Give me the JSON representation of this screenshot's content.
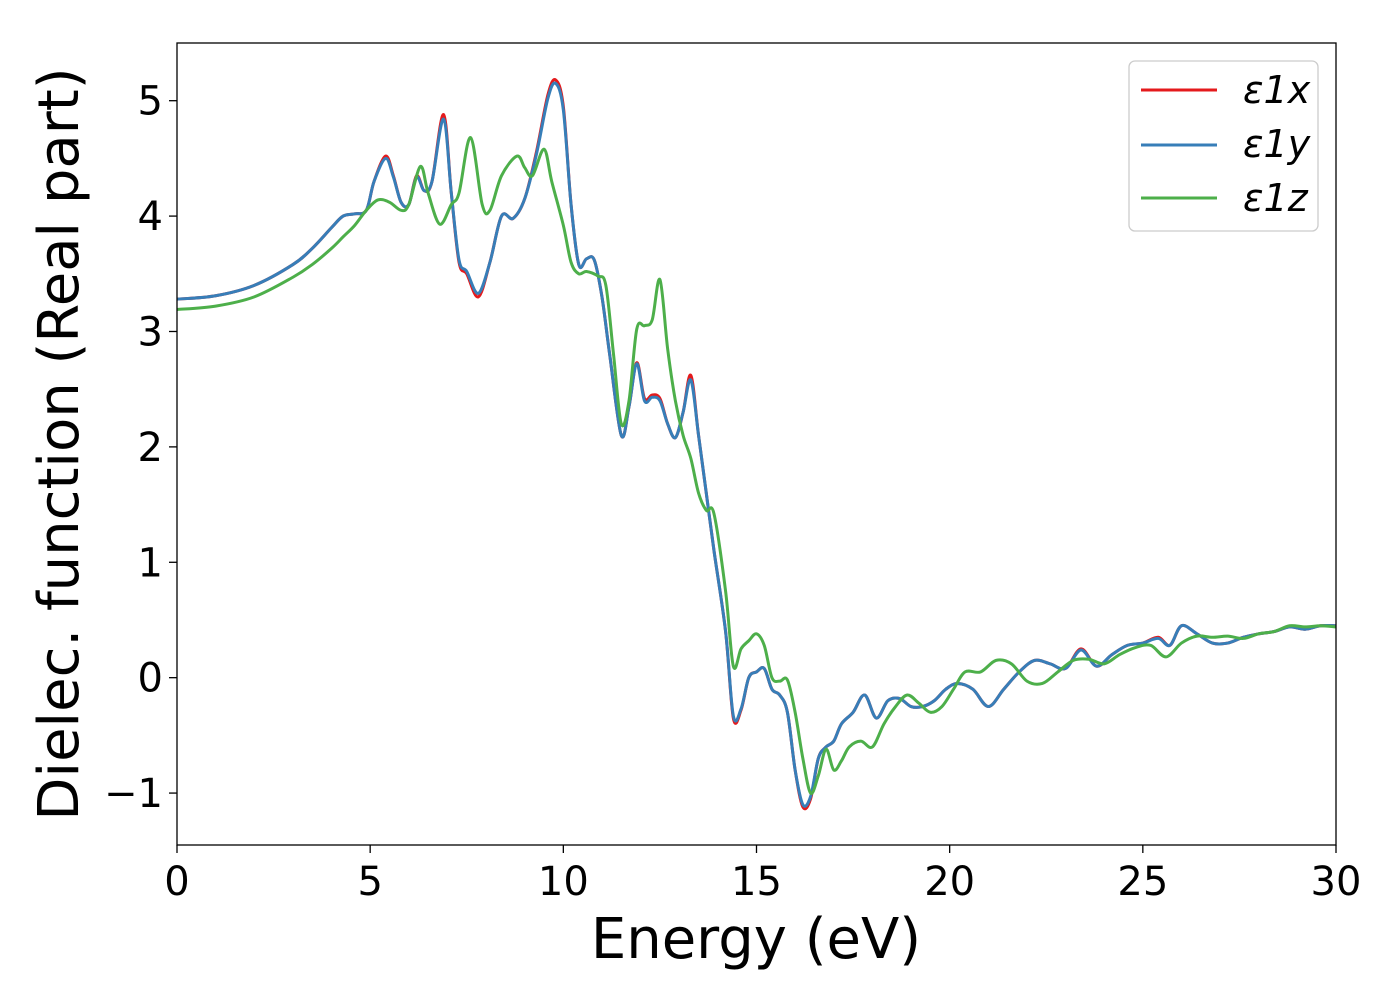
{
  "chart_data": {
    "type": "line",
    "xlabel": "Energy (eV)",
    "ylabel": "Dielec. function (Real part)",
    "xlim": [
      0,
      30
    ],
    "ylim": [
      -1.45,
      5.5
    ],
    "xticks": [
      0,
      5,
      10,
      15,
      20,
      25,
      30
    ],
    "xtick_labels": [
      "0",
      "5",
      "10",
      "15",
      "20",
      "25",
      "30"
    ],
    "yticks": [
      -1,
      0,
      1,
      2,
      3,
      4,
      5
    ],
    "ytick_labels": [
      "−1",
      "0",
      "1",
      "2",
      "3",
      "4",
      "5"
    ],
    "grid": false,
    "legend_position": "top-right",
    "series": [
      {
        "name": "ε1x",
        "color": "#e41a1c",
        "x": [
          0,
          1,
          2,
          3,
          3.5,
          4,
          4.3,
          4.6,
          4.9,
          5.1,
          5.4,
          5.6,
          5.8,
          6.0,
          6.2,
          6.4,
          6.6,
          6.9,
          7.1,
          7.3,
          7.5,
          7.8,
          8.1,
          8.4,
          8.7,
          9.0,
          9.3,
          9.6,
          9.8,
          10.0,
          10.2,
          10.4,
          10.6,
          10.8,
          11.0,
          11.2,
          11.5,
          11.7,
          11.9,
          12.1,
          12.3,
          12.5,
          12.7,
          12.9,
          13.1,
          13.3,
          13.5,
          13.7,
          13.9,
          14.2,
          14.4,
          14.6,
          14.8,
          15.0,
          15.2,
          15.4,
          15.6,
          15.8,
          16.0,
          16.2,
          16.4,
          16.6,
          16.8,
          17.0,
          17.2,
          17.5,
          17.8,
          18.1,
          18.4,
          18.7,
          19.0,
          19.3,
          19.6,
          19.9,
          20.2,
          20.6,
          21.0,
          21.4,
          21.8,
          22.2,
          22.6,
          23.0,
          23.4,
          23.8,
          24.2,
          24.6,
          25.0,
          25.4,
          25.7,
          26.0,
          26.4,
          26.8,
          27.2,
          27.6,
          28.0,
          28.4,
          28.8,
          29.2,
          29.6,
          30.0
        ],
        "y": [
          3.28,
          3.31,
          3.4,
          3.58,
          3.72,
          3.9,
          4.0,
          4.02,
          4.05,
          4.3,
          4.52,
          4.35,
          4.12,
          4.1,
          4.35,
          4.22,
          4.3,
          4.88,
          4.2,
          3.6,
          3.5,
          3.3,
          3.6,
          4.0,
          3.98,
          4.15,
          4.55,
          5.05,
          5.18,
          4.95,
          4.1,
          3.58,
          3.63,
          3.62,
          3.3,
          2.8,
          2.1,
          2.35,
          2.73,
          2.42,
          2.45,
          2.42,
          2.2,
          2.08,
          2.3,
          2.62,
          2.1,
          1.6,
          1.1,
          0.4,
          -0.35,
          -0.28,
          0.0,
          0.05,
          0.08,
          -0.1,
          -0.15,
          -0.3,
          -0.8,
          -1.12,
          -1.05,
          -0.7,
          -0.6,
          -0.55,
          -0.4,
          -0.3,
          -0.15,
          -0.35,
          -0.2,
          -0.18,
          -0.25,
          -0.25,
          -0.2,
          -0.1,
          -0.05,
          -0.1,
          -0.25,
          -0.1,
          0.05,
          0.15,
          0.12,
          0.08,
          0.25,
          0.1,
          0.2,
          0.28,
          0.3,
          0.35,
          0.28,
          0.45,
          0.38,
          0.3,
          0.3,
          0.35,
          0.38,
          0.4,
          0.44,
          0.42,
          0.45,
          0.45
        ]
      },
      {
        "name": "ε1y",
        "color": "#377eb8",
        "x": [
          0,
          1,
          2,
          3,
          3.5,
          4,
          4.3,
          4.6,
          4.9,
          5.1,
          5.4,
          5.6,
          5.8,
          6.0,
          6.2,
          6.4,
          6.6,
          6.9,
          7.1,
          7.3,
          7.5,
          7.8,
          8.1,
          8.4,
          8.7,
          9.0,
          9.3,
          9.6,
          9.8,
          10.0,
          10.2,
          10.4,
          10.6,
          10.8,
          11.0,
          11.2,
          11.5,
          11.7,
          11.9,
          12.1,
          12.3,
          12.5,
          12.7,
          12.9,
          13.1,
          13.3,
          13.5,
          13.7,
          13.9,
          14.2,
          14.4,
          14.6,
          14.8,
          15.0,
          15.2,
          15.4,
          15.6,
          15.8,
          16.0,
          16.2,
          16.4,
          16.6,
          16.8,
          17.0,
          17.2,
          17.5,
          17.8,
          18.1,
          18.4,
          18.7,
          19.0,
          19.3,
          19.6,
          19.9,
          20.2,
          20.6,
          21.0,
          21.4,
          21.8,
          22.2,
          22.6,
          23.0,
          23.4,
          23.8,
          24.2,
          24.6,
          25.0,
          25.4,
          25.7,
          26.0,
          26.4,
          26.8,
          27.2,
          27.6,
          28.0,
          28.4,
          28.8,
          29.2,
          29.6,
          30.0
        ],
        "y": [
          3.28,
          3.31,
          3.4,
          3.58,
          3.72,
          3.9,
          4.0,
          4.02,
          4.05,
          4.3,
          4.5,
          4.34,
          4.12,
          4.1,
          4.34,
          4.22,
          4.3,
          4.84,
          4.2,
          3.62,
          3.52,
          3.33,
          3.6,
          4.0,
          3.98,
          4.15,
          4.53,
          5.02,
          5.15,
          4.92,
          4.1,
          3.58,
          3.63,
          3.62,
          3.3,
          2.8,
          2.1,
          2.35,
          2.72,
          2.4,
          2.43,
          2.4,
          2.2,
          2.08,
          2.3,
          2.58,
          2.1,
          1.6,
          1.1,
          0.4,
          -0.33,
          -0.27,
          0.0,
          0.05,
          0.08,
          -0.1,
          -0.15,
          -0.3,
          -0.8,
          -1.1,
          -1.03,
          -0.7,
          -0.6,
          -0.55,
          -0.4,
          -0.3,
          -0.15,
          -0.35,
          -0.2,
          -0.18,
          -0.25,
          -0.25,
          -0.2,
          -0.1,
          -0.05,
          -0.1,
          -0.25,
          -0.1,
          0.05,
          0.15,
          0.12,
          0.08,
          0.24,
          0.1,
          0.2,
          0.28,
          0.3,
          0.34,
          0.28,
          0.45,
          0.38,
          0.3,
          0.3,
          0.35,
          0.38,
          0.4,
          0.44,
          0.42,
          0.45,
          0.45
        ]
      },
      {
        "name": "ε1z",
        "color": "#4daf4a",
        "x": [
          0,
          1,
          2,
          3,
          3.5,
          4,
          4.3,
          4.6,
          4.9,
          5.2,
          5.5,
          5.8,
          6.0,
          6.3,
          6.5,
          6.8,
          7.1,
          7.3,
          7.6,
          7.9,
          8.1,
          8.4,
          8.8,
          9.0,
          9.2,
          9.5,
          9.7,
          10.0,
          10.2,
          10.4,
          10.6,
          10.9,
          11.1,
          11.3,
          11.5,
          11.7,
          11.9,
          12.1,
          12.3,
          12.5,
          12.7,
          12.9,
          13.1,
          13.3,
          13.5,
          13.7,
          13.9,
          14.2,
          14.4,
          14.6,
          14.8,
          15.0,
          15.2,
          15.4,
          15.6,
          15.8,
          16.0,
          16.2,
          16.4,
          16.6,
          16.8,
          17.0,
          17.2,
          17.4,
          17.7,
          18.0,
          18.3,
          18.6,
          18.9,
          19.2,
          19.5,
          19.8,
          20.1,
          20.4,
          20.8,
          21.2,
          21.6,
          22.0,
          22.4,
          22.8,
          23.2,
          23.6,
          24.0,
          24.4,
          24.8,
          25.2,
          25.6,
          26.0,
          26.4,
          26.8,
          27.2,
          27.6,
          28.0,
          28.4,
          28.8,
          29.2,
          29.6,
          30.0
        ],
        "y": [
          3.19,
          3.22,
          3.3,
          3.47,
          3.58,
          3.72,
          3.82,
          3.92,
          4.05,
          4.14,
          4.12,
          4.05,
          4.1,
          4.43,
          4.2,
          3.93,
          4.1,
          4.2,
          4.68,
          4.1,
          4.05,
          4.35,
          4.52,
          4.42,
          4.35,
          4.58,
          4.3,
          3.92,
          3.6,
          3.5,
          3.52,
          3.48,
          3.4,
          2.8,
          2.2,
          2.4,
          3.02,
          3.05,
          3.1,
          3.45,
          2.85,
          2.4,
          2.1,
          1.9,
          1.6,
          1.45,
          1.42,
          0.75,
          0.1,
          0.25,
          0.32,
          0.38,
          0.28,
          0.0,
          -0.03,
          -0.02,
          -0.3,
          -0.7,
          -1.0,
          -0.85,
          -0.62,
          -0.8,
          -0.72,
          -0.6,
          -0.55,
          -0.6,
          -0.4,
          -0.25,
          -0.15,
          -0.22,
          -0.3,
          -0.25,
          -0.1,
          0.05,
          0.05,
          0.15,
          0.12,
          -0.03,
          -0.05,
          0.05,
          0.15,
          0.16,
          0.12,
          0.2,
          0.26,
          0.28,
          0.18,
          0.3,
          0.36,
          0.35,
          0.36,
          0.34,
          0.38,
          0.4,
          0.45,
          0.44,
          0.45,
          0.44
        ]
      }
    ]
  }
}
